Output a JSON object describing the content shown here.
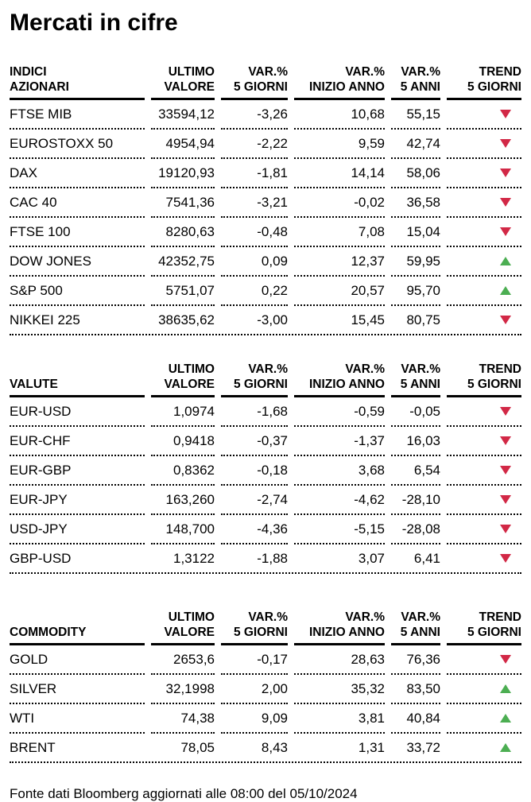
{
  "title": "Mercati in cifre",
  "footer": "Fonte dati Bloomberg aggiornati alle 08:00 del 05/10/2024",
  "colors": {
    "trend_up": "#4cae52",
    "trend_down": "#d22846",
    "text": "#000000"
  },
  "column_headers": [
    [
      "ULTIMO",
      "VALORE"
    ],
    [
      "VAR.%",
      "5 GIORNI"
    ],
    [
      "VAR.%",
      "INIZIO ANNO"
    ],
    [
      "VAR.%",
      "5 ANNI"
    ],
    [
      "TREND",
      "5 GIORNI"
    ]
  ],
  "tables": [
    {
      "id": "indici-azionari",
      "label_lines": [
        "INDICI",
        "AZIONARI"
      ],
      "rows": [
        {
          "label": "FTSE MIB",
          "values": [
            "33594,12",
            "-3,26",
            "10,68",
            "55,15"
          ],
          "trend": "down"
        },
        {
          "label": "EUROSTOXX 50",
          "values": [
            "4954,94",
            "-2,22",
            "9,59",
            "42,74"
          ],
          "trend": "down"
        },
        {
          "label": "DAX",
          "values": [
            "19120,93",
            "-1,81",
            "14,14",
            "58,06"
          ],
          "trend": "down"
        },
        {
          "label": "CAC 40",
          "values": [
            "7541,36",
            "-3,21",
            "-0,02",
            "36,58"
          ],
          "trend": "down"
        },
        {
          "label": "FTSE 100",
          "values": [
            "8280,63",
            "-0,48",
            "7,08",
            "15,04"
          ],
          "trend": "down"
        },
        {
          "label": "DOW JONES",
          "values": [
            "42352,75",
            "0,09",
            "12,37",
            "59,95"
          ],
          "trend": "up"
        },
        {
          "label": "S&P 500",
          "values": [
            "5751,07",
            "0,22",
            "20,57",
            "95,70"
          ],
          "trend": "up"
        },
        {
          "label": "NIKKEI 225",
          "values": [
            "38635,62",
            "-3,00",
            "15,45",
            "80,75"
          ],
          "trend": "down"
        }
      ]
    },
    {
      "id": "valute",
      "label_lines": [
        "VALUTE"
      ],
      "rows": [
        {
          "label": "EUR-USD",
          "values": [
            "1,0974",
            "-1,68",
            "-0,59",
            "-0,05"
          ],
          "trend": "down"
        },
        {
          "label": "EUR-CHF",
          "values": [
            "0,9418",
            "-0,37",
            "-1,37",
            "16,03"
          ],
          "trend": "down"
        },
        {
          "label": "EUR-GBP",
          "values": [
            "0,8362",
            "-0,18",
            "3,68",
            "6,54"
          ],
          "trend": "down"
        },
        {
          "label": "EUR-JPY",
          "values": [
            "163,260",
            "-2,74",
            "-4,62",
            "-28,10"
          ],
          "trend": "down"
        },
        {
          "label": "USD-JPY",
          "values": [
            "148,700",
            "-4,36",
            "-5,15",
            "-28,08"
          ],
          "trend": "down"
        },
        {
          "label": "GBP-USD",
          "values": [
            "1,3122",
            "-1,88",
            "3,07",
            "6,41"
          ],
          "trend": "down"
        }
      ]
    },
    {
      "id": "commodity",
      "label_lines": [
        "COMMODITY"
      ],
      "rows": [
        {
          "label": "GOLD",
          "values": [
            "2653,6",
            "-0,17",
            "28,63",
            "76,36"
          ],
          "trend": "down"
        },
        {
          "label": "SILVER",
          "values": [
            "32,1998",
            "2,00",
            "35,32",
            "83,50"
          ],
          "trend": "up"
        },
        {
          "label": "WTI",
          "values": [
            "74,38",
            "9,09",
            "3,81",
            "40,84"
          ],
          "trend": "up"
        },
        {
          "label": "BRENT",
          "values": [
            "78,05",
            "8,43",
            "1,31",
            "33,72"
          ],
          "trend": "up"
        }
      ]
    }
  ]
}
